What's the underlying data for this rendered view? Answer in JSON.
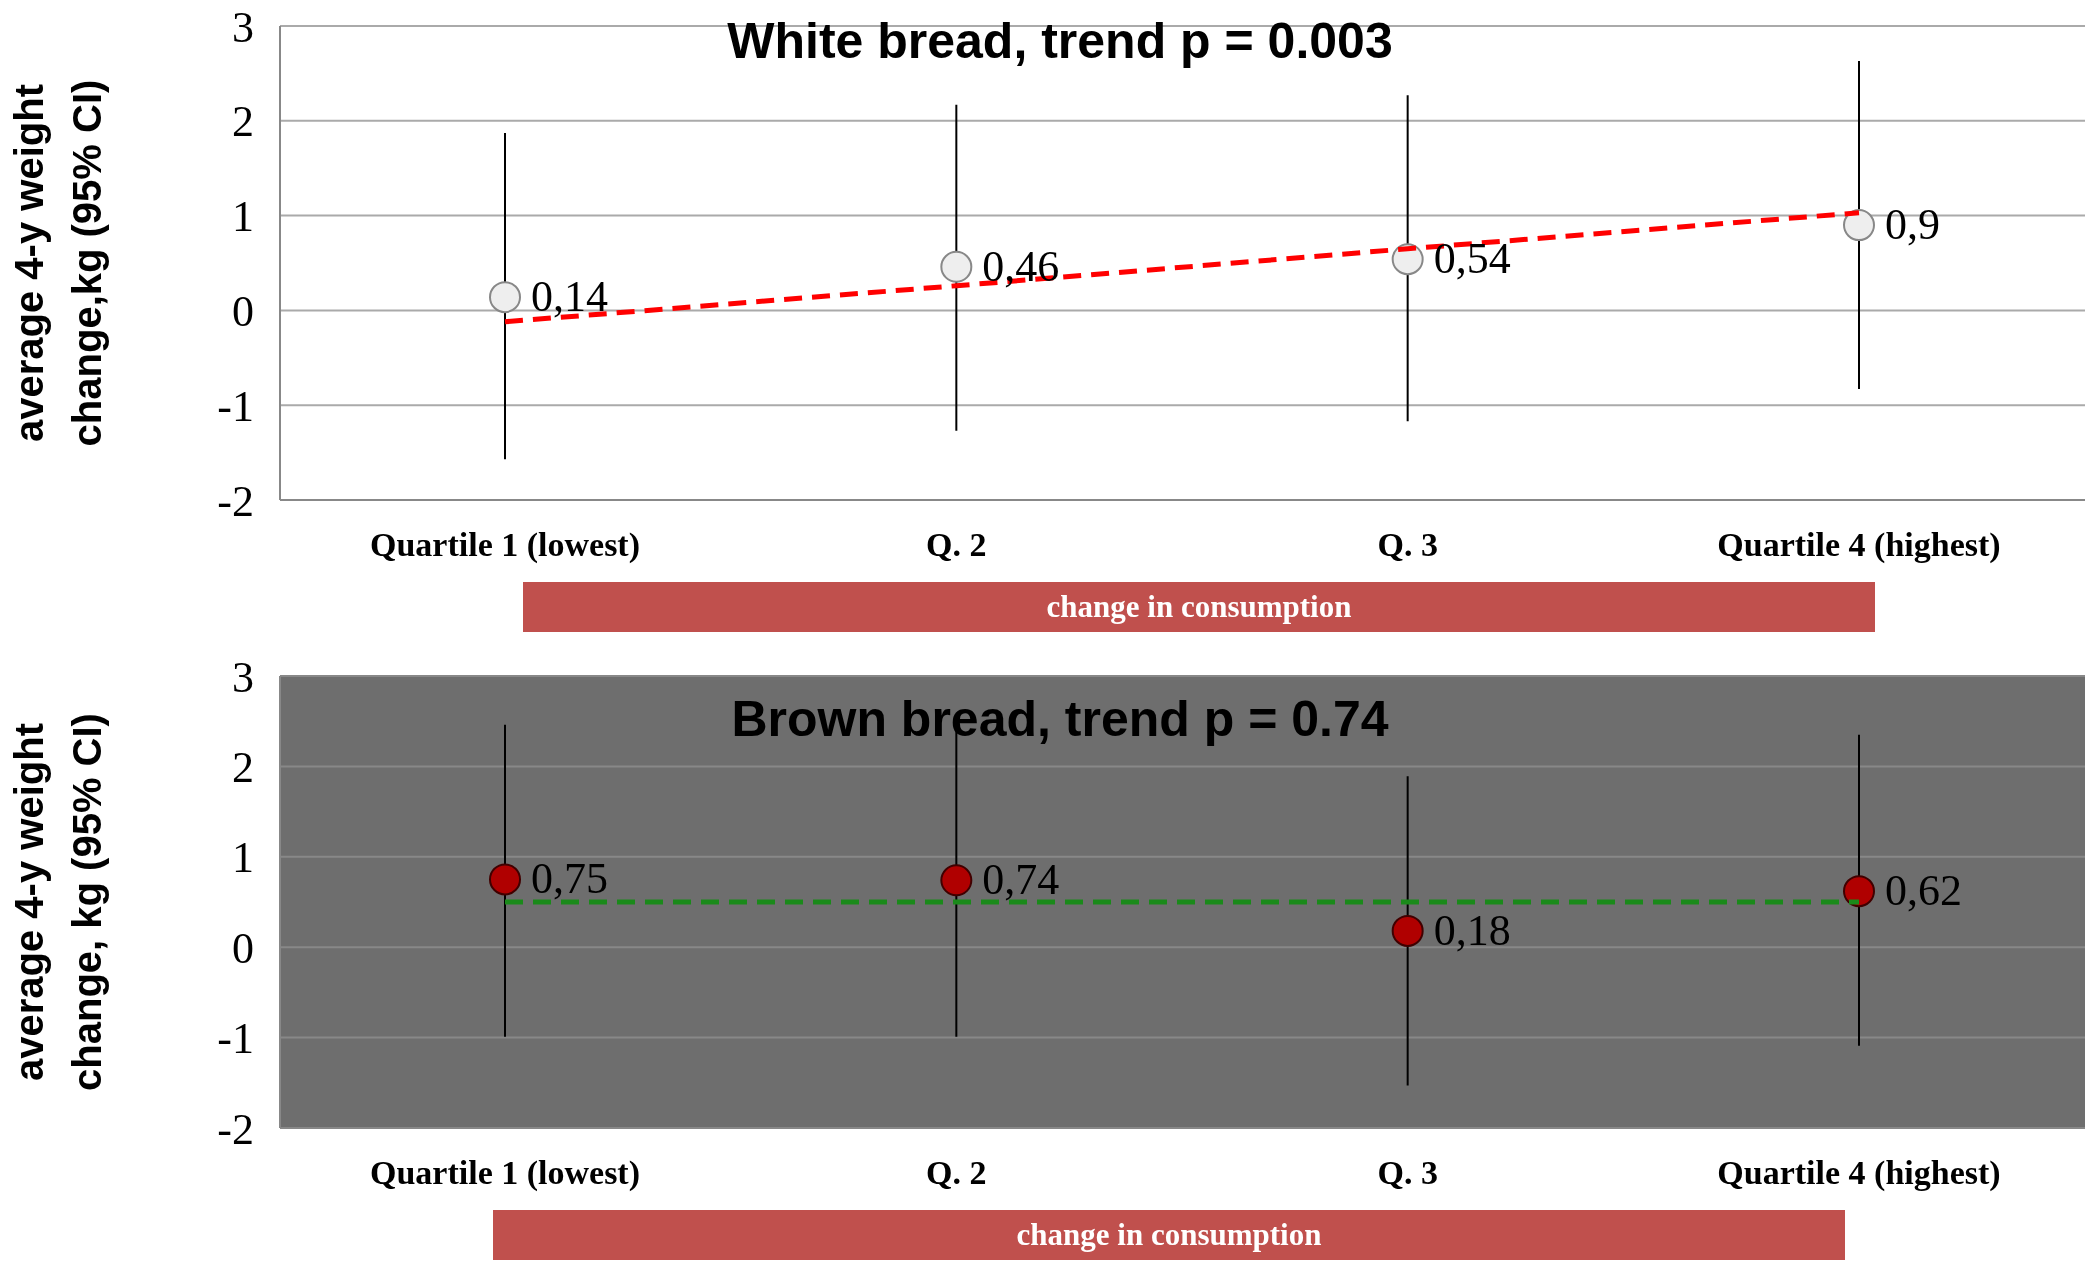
{
  "chart_data": [
    {
      "type": "scatter",
      "title": "White bread, trend p = 0.003",
      "ylabel": "average 4-y weight change,kg (95% CI)",
      "categories": [
        "Quartile 1 (lowest)",
        "Q. 2",
        "Q. 3",
        "Quartile 4 (highest)"
      ],
      "ylim": [
        -2,
        3
      ],
      "yticks": [
        -2,
        -1,
        0,
        1,
        2,
        3
      ],
      "grid": "y",
      "legend": false,
      "annotations": [
        "change in consumption"
      ],
      "series": [
        {
          "type": "scatter",
          "marker": "circle",
          "color": "#eeeeee",
          "values": [
            0.14,
            0.46,
            0.54,
            0.9
          ],
          "errors": [
            [
              -1.57,
              1.87
            ],
            [
              -1.27,
              2.17
            ],
            [
              -1.17,
              2.27
            ],
            [
              -0.83,
              2.63
            ]
          ],
          "value_labels": [
            "0,14",
            "0,46",
            "0,54",
            "0,9"
          ]
        },
        {
          "type": "line",
          "line_style": "dashed",
          "color": "#ff0000",
          "values": [
            -0.12,
            0.26,
            0.65,
            1.03
          ]
        }
      ]
    },
    {
      "type": "scatter",
      "title": "Brown bread, trend p = 0.74",
      "ylabel": "average 4-y weight change, kg (95% CI)",
      "categories": [
        "Quartile 1 (lowest)",
        "Q. 2",
        "Q. 3",
        "Quartile 4 (highest)"
      ],
      "ylim": [
        -2,
        3
      ],
      "yticks": [
        -2,
        -1,
        0,
        1,
        2,
        3
      ],
      "grid": "y",
      "legend": false,
      "annotations": [
        "change in consumption"
      ],
      "series": [
        {
          "type": "scatter",
          "marker": "circle",
          "color": "#b00000",
          "values": [
            0.75,
            0.74,
            0.18,
            0.62
          ],
          "errors": [
            [
              -0.99,
              2.46
            ],
            [
              -0.99,
              2.46
            ],
            [
              -1.53,
              1.89
            ],
            [
              -1.09,
              2.35
            ]
          ],
          "value_labels": [
            "0,75",
            "0,74",
            "0,18",
            "0,62"
          ]
        },
        {
          "type": "line",
          "line_style": "dashed",
          "color": "#1a8a1a",
          "values": [
            0.5,
            0.5,
            0.5,
            0.5
          ]
        }
      ]
    }
  ]
}
